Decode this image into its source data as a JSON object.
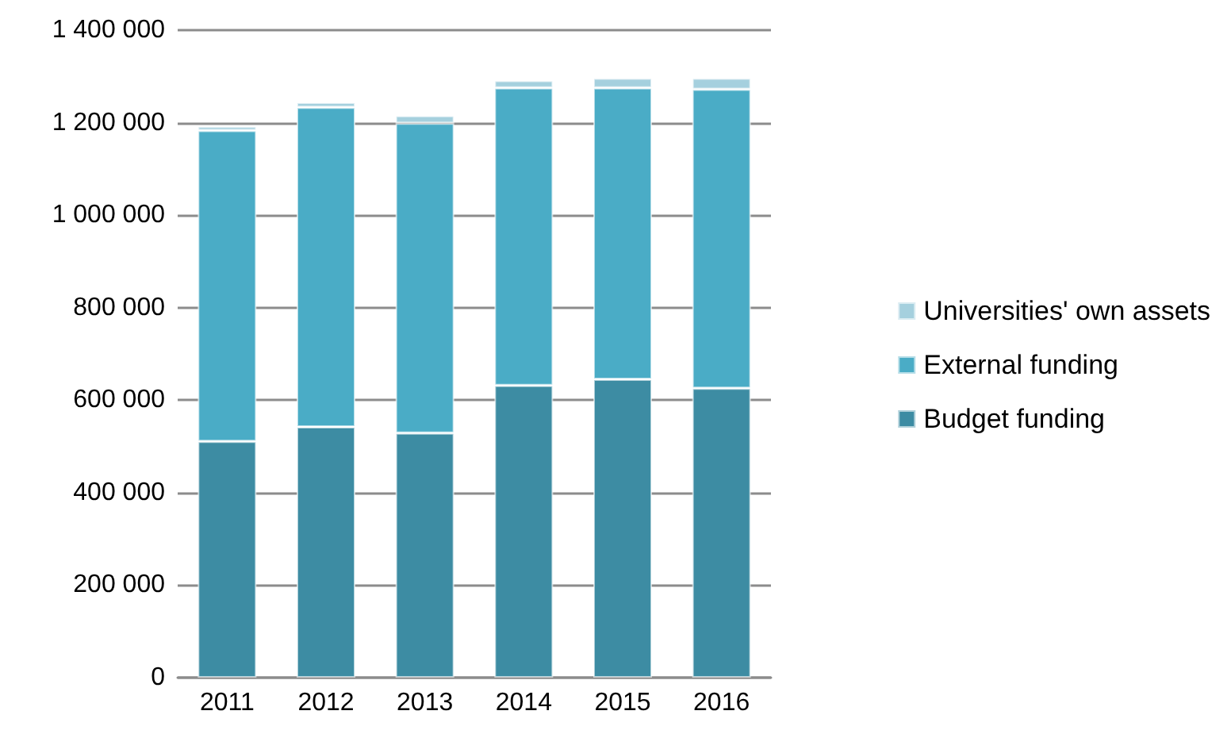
{
  "chart_data": {
    "type": "bar",
    "stacked": true,
    "categories": [
      "2011",
      "2012",
      "2013",
      "2014",
      "2015",
      "2016"
    ],
    "series": [
      {
        "name": "Budget funding",
        "color": "#3d8ca3",
        "values": [
          511000,
          542000,
          529000,
          632000,
          645000,
          626000
        ]
      },
      {
        "name": "External funding",
        "color": "#4aacc6",
        "values": [
          672000,
          691000,
          670000,
          643000,
          630000,
          646000
        ]
      },
      {
        "name": "Universities' own assets",
        "color": "#a5d0de",
        "values": [
          9000,
          11000,
          16000,
          16000,
          21000,
          24000
        ]
      }
    ],
    "ylim": [
      0,
      1400000
    ],
    "yticks": [
      {
        "value": 0,
        "label": "0"
      },
      {
        "value": 200000,
        "label": "200 000"
      },
      {
        "value": 400000,
        "label": "400 000"
      },
      {
        "value": 600000,
        "label": "600 000"
      },
      {
        "value": 800000,
        "label": "800 000"
      },
      {
        "value": 1000000,
        "label": "1 000 000"
      },
      {
        "value": 1200000,
        "label": "1 200 000"
      },
      {
        "value": 1400000,
        "label": "1 400 000"
      }
    ],
    "grid": "y",
    "legend": "right"
  }
}
